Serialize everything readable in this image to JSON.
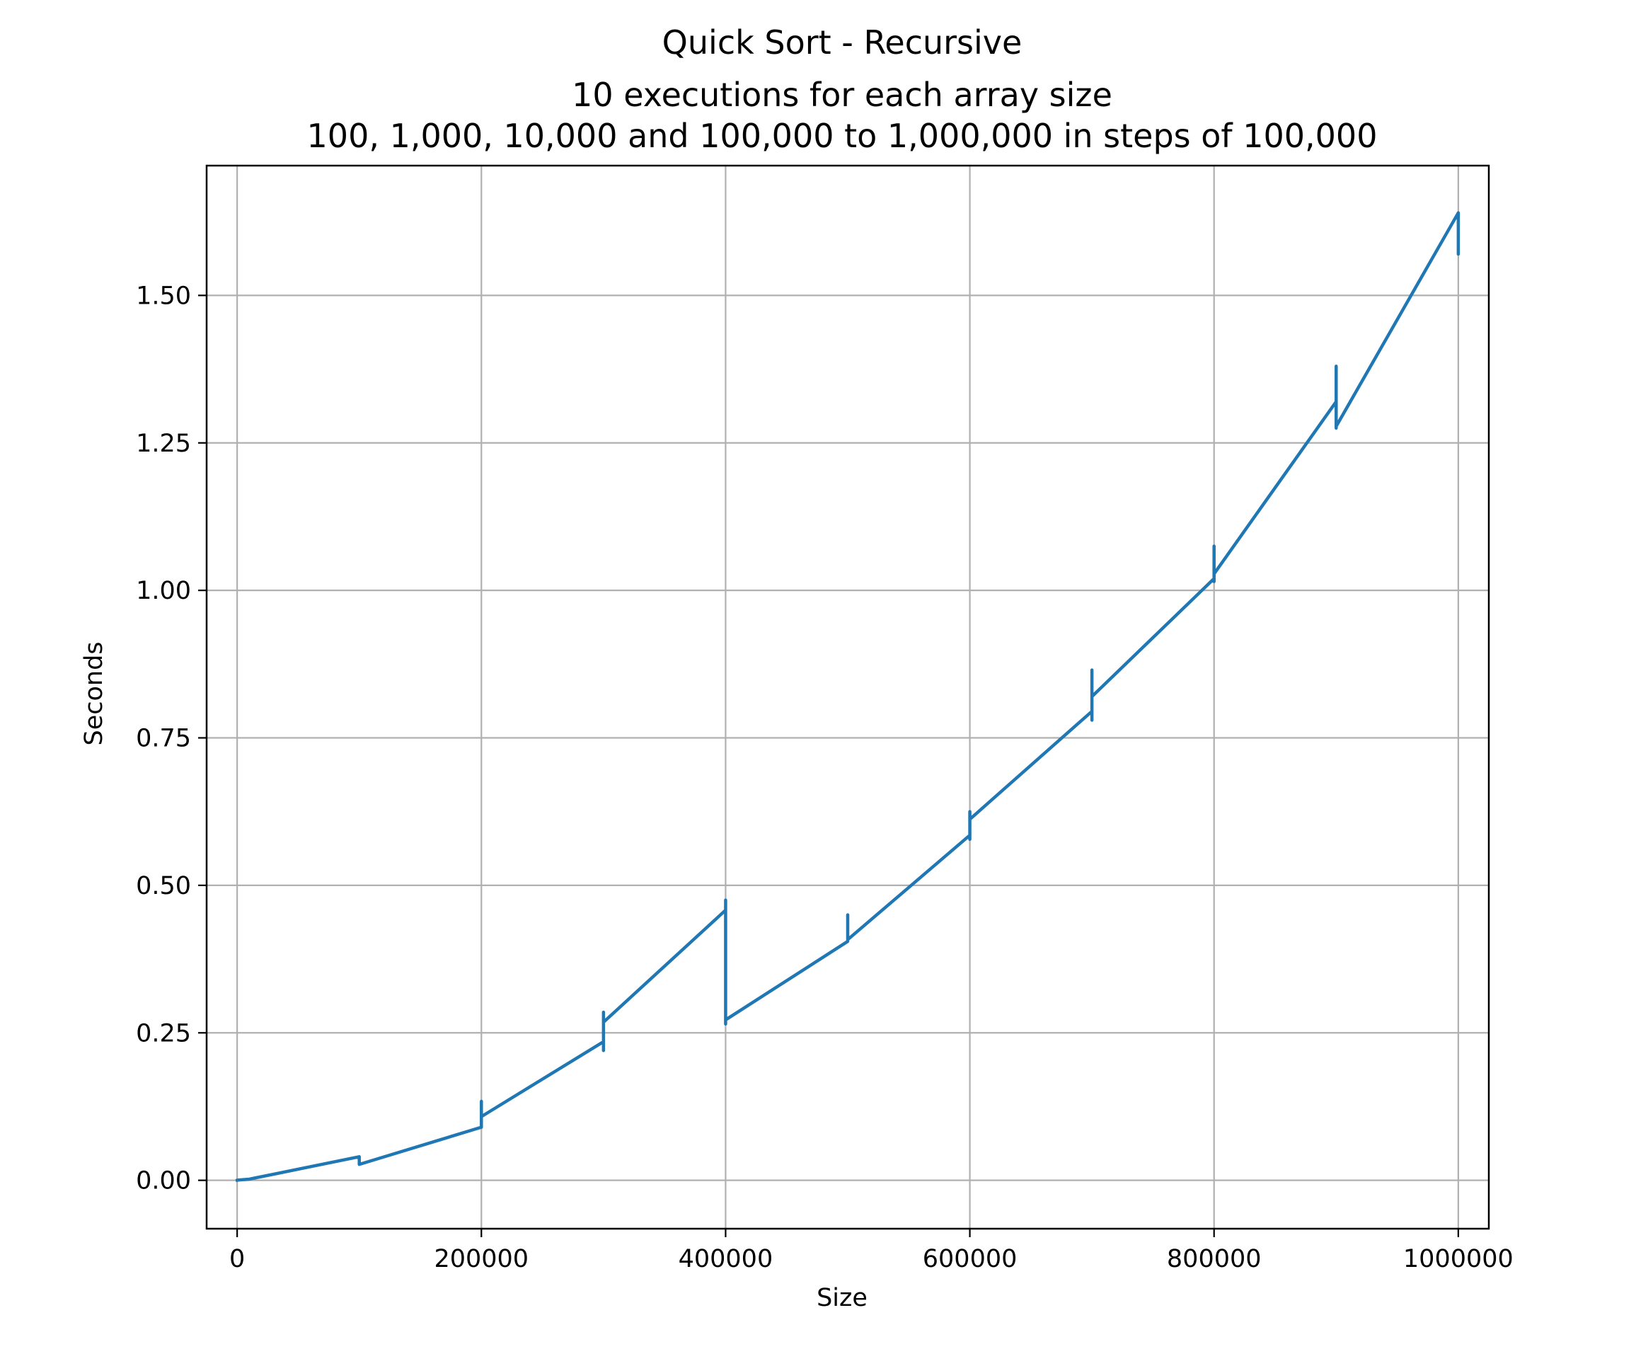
{
  "chart_data": {
    "type": "line",
    "title": "Quick Sort - Recursive",
    "subtitle_lines": [
      "10 executions for each array size",
      "100, 1,000, 10,000 and 100,000 to 1,000,000 in steps of 100,000"
    ],
    "xlabel": "Size",
    "ylabel": "Seconds",
    "xlim": [
      -25000,
      1025000
    ],
    "ylim": [
      -0.082,
      1.72
    ],
    "x_ticks": [
      0,
      200000,
      400000,
      600000,
      800000,
      1000000
    ],
    "x_tick_labels": [
      "0",
      "200000",
      "400000",
      "600000",
      "800000",
      "1000000"
    ],
    "y_ticks": [
      0.0,
      0.25,
      0.5,
      0.75,
      1.0,
      1.25,
      1.5
    ],
    "y_tick_labels": [
      "0.00",
      "0.25",
      "0.50",
      "0.75",
      "1.00",
      "1.25",
      "1.50"
    ],
    "grid": true,
    "series": [
      {
        "color": "#1f77b4",
        "x": [
          100,
          100,
          100,
          100,
          100,
          100,
          100,
          100,
          100,
          100,
          1000,
          1000,
          1000,
          1000,
          1000,
          1000,
          1000,
          1000,
          1000,
          1000,
          10000,
          10000,
          10000,
          10000,
          10000,
          10000,
          10000,
          10000,
          10000,
          10000,
          100000,
          100000,
          100000,
          100000,
          100000,
          100000,
          100000,
          100000,
          100000,
          100000,
          200000,
          200000,
          200000,
          200000,
          200000,
          200000,
          200000,
          200000,
          200000,
          200000,
          300000,
          300000,
          300000,
          300000,
          300000,
          300000,
          300000,
          300000,
          300000,
          300000,
          400000,
          400000,
          400000,
          400000,
          400000,
          400000,
          400000,
          400000,
          400000,
          400000,
          500000,
          500000,
          500000,
          500000,
          500000,
          500000,
          500000,
          500000,
          500000,
          500000,
          600000,
          600000,
          600000,
          600000,
          600000,
          600000,
          600000,
          600000,
          600000,
          600000,
          700000,
          700000,
          700000,
          700000,
          700000,
          700000,
          700000,
          700000,
          700000,
          700000,
          800000,
          800000,
          800000,
          800000,
          800000,
          800000,
          800000,
          800000,
          800000,
          800000,
          900000,
          900000,
          900000,
          900000,
          900000,
          900000,
          900000,
          900000,
          900000,
          900000,
          1000000,
          1000000,
          1000000,
          1000000,
          1000000,
          1000000,
          1000000,
          1000000,
          1000000,
          1000000
        ],
        "y": [
          0.0001,
          0.0001,
          0.0001,
          0.0001,
          0.0001,
          0.0001,
          0.0001,
          0.0001,
          0.0001,
          0.0001,
          0.0005,
          0.0005,
          0.0005,
          0.0005,
          0.0005,
          0.0005,
          0.0005,
          0.0005,
          0.0005,
          0.0005,
          0.002,
          0.002,
          0.002,
          0.002,
          0.002,
          0.002,
          0.002,
          0.002,
          0.002,
          0.002,
          0.04,
          0.033,
          0.03,
          0.035,
          0.028,
          0.032,
          0.036,
          0.031,
          0.029,
          0.027,
          0.09,
          0.134,
          0.1,
          0.12,
          0.095,
          0.13,
          0.11,
          0.105,
          0.125,
          0.108,
          0.235,
          0.285,
          0.22,
          0.25,
          0.27,
          0.23,
          0.28,
          0.24,
          0.26,
          0.268,
          0.458,
          0.475,
          0.3,
          0.42,
          0.265,
          0.44,
          0.35,
          0.4,
          0.28,
          0.272,
          0.405,
          0.45,
          0.415,
          0.43,
          0.41,
          0.44,
          0.42,
          0.435,
          0.412,
          0.408,
          0.585,
          0.625,
          0.578,
          0.6,
          0.59,
          0.615,
          0.595,
          0.605,
          0.58,
          0.612,
          0.795,
          0.865,
          0.78,
          0.84,
          0.81,
          0.85,
          0.8,
          0.83,
          0.79,
          0.82,
          1.02,
          1.075,
          1.015,
          1.05,
          1.03,
          1.065,
          1.025,
          1.045,
          1.018,
          1.028,
          1.32,
          1.38,
          1.275,
          1.35,
          1.3,
          1.37,
          1.29,
          1.34,
          1.285,
          1.278,
          1.64,
          1.63,
          1.57,
          1.62,
          1.58,
          1.635,
          1.6,
          1.61,
          1.59,
          1.572
        ]
      }
    ]
  }
}
